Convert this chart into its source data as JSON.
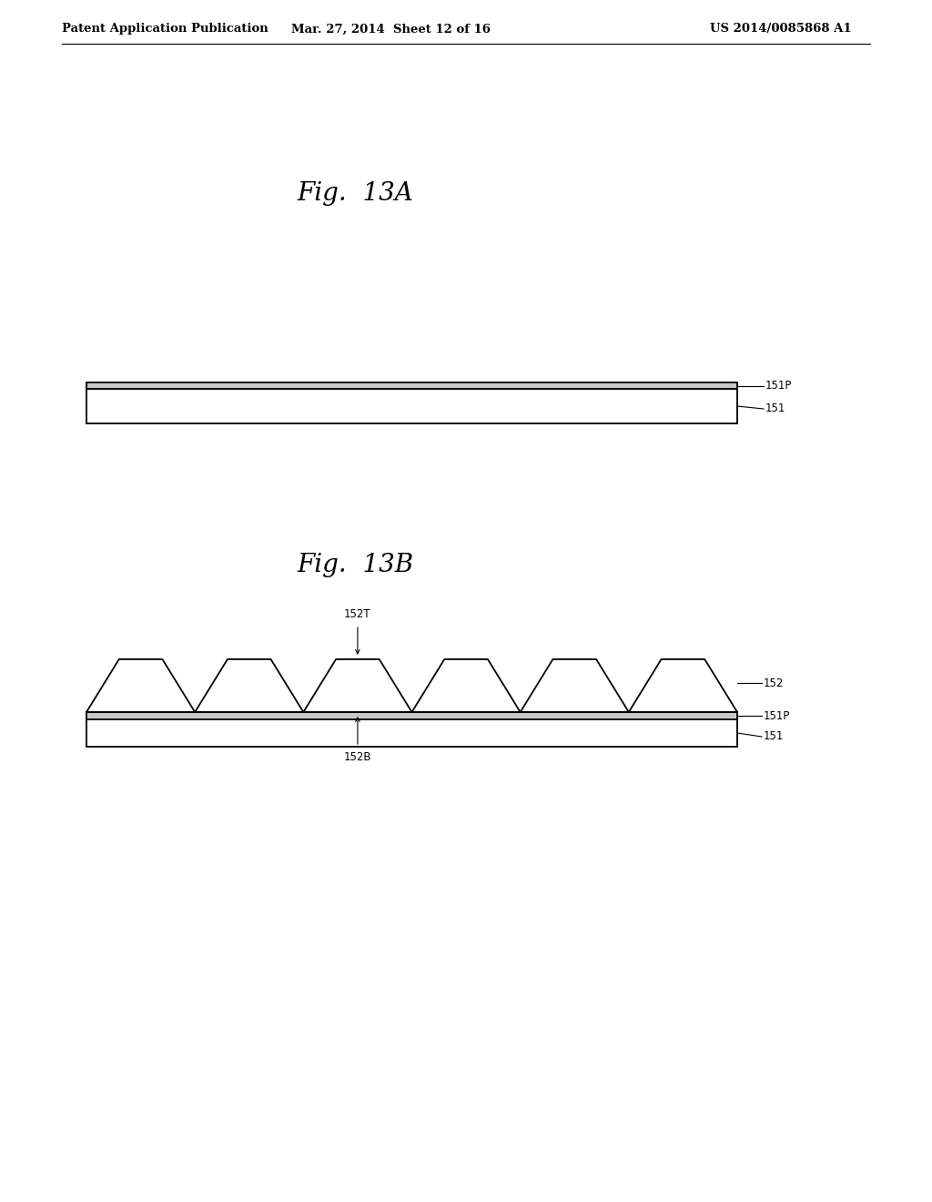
{
  "background_color": "#ffffff",
  "header_left": "Patent Application Publication",
  "header_center": "Mar. 27, 2014  Sheet 12 of 16",
  "header_right": "US 2014/0085868 A1",
  "header_fontsize": 9.5,
  "fig13A_title": "Fig.  13A",
  "fig13B_title": "Fig.  13B",
  "title_fontsize": 20,
  "label_fontsize": 8.5,
  "line_color": "#000000",
  "fill_color_white": "#ffffff",
  "fill_color_151P": "#c8c8c8",
  "fill_color_151": "#ffffff",
  "fill_color_152": "#ffffff"
}
